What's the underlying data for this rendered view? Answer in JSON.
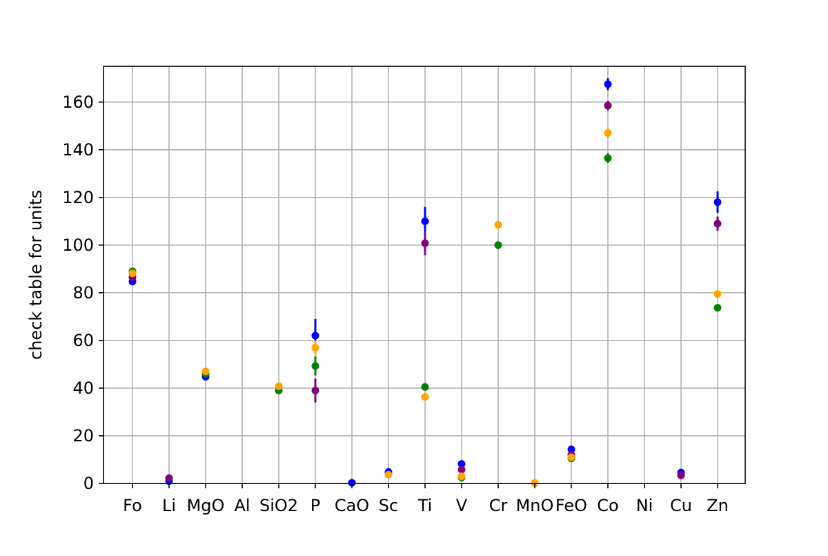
{
  "chart_data": {
    "type": "scatter",
    "ylabel": "check table for units",
    "xlabel": "",
    "title": "",
    "categories": [
      "Fo",
      "Li",
      "MgO",
      "Al",
      "SiO2",
      "P",
      "CaO",
      "Sc",
      "Ti",
      "V",
      "Cr",
      "MnO",
      "FeO",
      "Co",
      "Ni",
      "Cu",
      "Zn"
    ],
    "ylim": [
      0,
      175
    ],
    "yticks": [
      0,
      20,
      40,
      60,
      80,
      100,
      120,
      140,
      160
    ],
    "grid": true,
    "legend": "none",
    "series": [
      {
        "color": "#0000ff",
        "values": [
          84.7,
          1.0,
          44.8,
          null,
          null,
          62.0,
          0.3,
          4.8,
          110.0,
          8.2,
          null,
          null,
          14.3,
          167.5,
          null,
          4.6,
          118.0
        ],
        "errors": [
          0.8,
          0.3,
          0.8,
          null,
          null,
          7.0,
          0.2,
          0.4,
          6.0,
          0.6,
          null,
          null,
          0.6,
          2.5,
          null,
          0.4,
          4.5
        ]
      },
      {
        "color": "#800080",
        "values": [
          86.5,
          2.2,
          null,
          null,
          null,
          39.0,
          null,
          null,
          100.8,
          5.8,
          null,
          null,
          12.0,
          158.5,
          null,
          3.4,
          109.0
        ],
        "errors": [
          0.6,
          0.3,
          null,
          null,
          null,
          5.0,
          null,
          null,
          5.0,
          0.4,
          null,
          null,
          0.5,
          2.0,
          null,
          0.3,
          3.0
        ]
      },
      {
        "color": "#008000",
        "values": [
          89.0,
          null,
          46.0,
          null,
          39.0,
          49.3,
          null,
          null,
          40.5,
          2.5,
          100.0,
          null,
          10.5,
          136.5,
          null,
          null,
          73.7
        ],
        "errors": [
          0.6,
          null,
          0.5,
          null,
          0.6,
          4.0,
          null,
          null,
          0.8,
          0.3,
          1.5,
          null,
          0.5,
          2.0,
          null,
          null,
          1.0
        ]
      },
      {
        "color": "#ffa500",
        "values": [
          88.2,
          null,
          47.0,
          null,
          40.8,
          57.0,
          null,
          3.7,
          36.3,
          3.0,
          108.5,
          0.2,
          11.0,
          147.0,
          null,
          null,
          79.5
        ],
        "errors": [
          0.6,
          null,
          0.5,
          null,
          0.5,
          3.0,
          null,
          0.3,
          0.7,
          0.3,
          1.2,
          0.1,
          0.5,
          2.0,
          null,
          null,
          1.0
        ]
      }
    ]
  }
}
